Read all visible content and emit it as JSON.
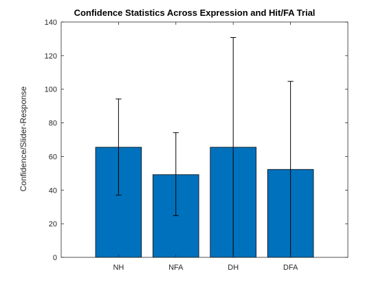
{
  "chart_data": {
    "type": "bar",
    "title": "Confidence Statistics Across Expression and Hit/FA Trial",
    "xlabel": "",
    "ylabel": "Confidence/Slider-Response",
    "categories": [
      "NH",
      "NFA",
      "DH",
      "DFA"
    ],
    "values": [
      65.5,
      49.2,
      65.5,
      52.3
    ],
    "error_upper": [
      94.2,
      74.2,
      130.8,
      104.7
    ],
    "error_lower": [
      37,
      24.8,
      0,
      0
    ],
    "ylim": [
      0,
      140
    ],
    "yticks": [
      0,
      20,
      40,
      60,
      80,
      100,
      120,
      140
    ],
    "xlim": [
      0,
      5
    ],
    "bar_color": "#0072bd",
    "grid": false,
    "box": true
  }
}
